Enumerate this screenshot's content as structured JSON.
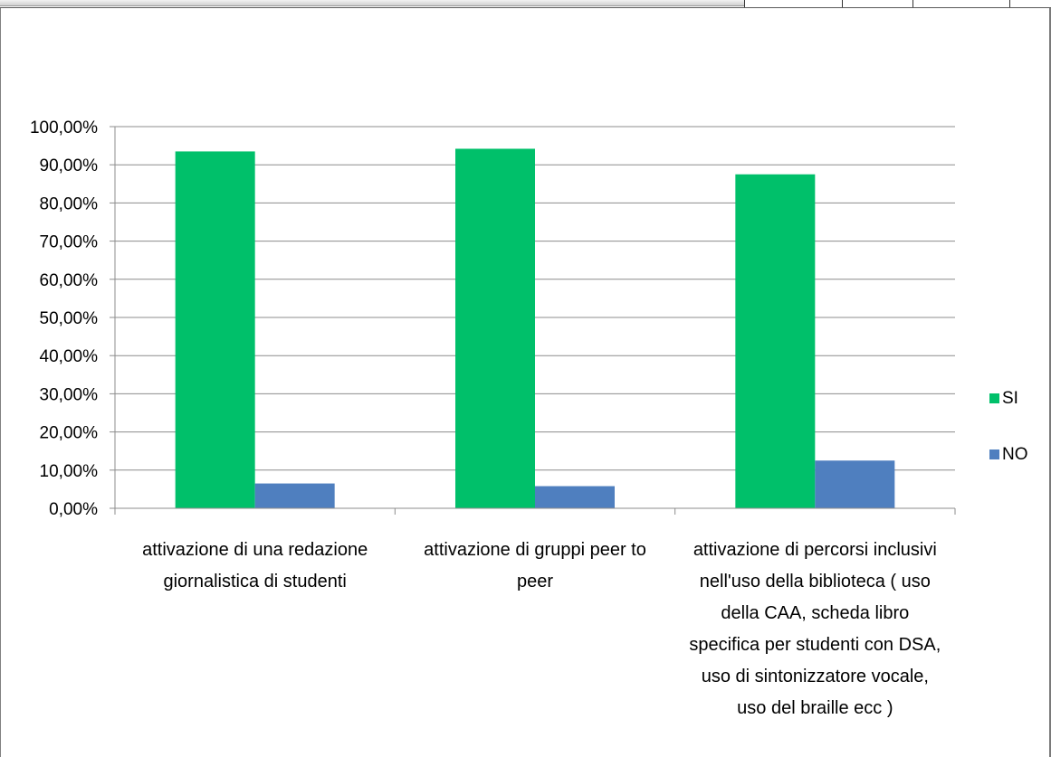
{
  "chart_data": {
    "type": "bar",
    "title": "",
    "xlabel": "",
    "ylabel": "",
    "ylim": [
      0,
      1
    ],
    "grid": true,
    "legend_position": "right",
    "y_ticks": [
      "0,00%",
      "10,00%",
      "20,00%",
      "30,00%",
      "40,00%",
      "50,00%",
      "60,00%",
      "70,00%",
      "80,00%",
      "90,00%",
      "100,00%"
    ],
    "categories": [
      [
        "attivazione di una redazione",
        "giornalistica di studenti"
      ],
      [
        "attivazione di gruppi peer to",
        "peer"
      ],
      [
        "attivazione di percorsi inclusivi",
        "nell'uso della biblioteca ( uso",
        "della CAA, scheda libro",
        "specifica per studenti con DSA,",
        "uso di sintonizzatore vocale,",
        "uso del braille ecc )"
      ]
    ],
    "series": [
      {
        "name": "SI",
        "color": "#00c06a",
        "values": [
          0.935,
          0.942,
          0.875
        ]
      },
      {
        "name": "NO",
        "color": "#4f7fbf",
        "values": [
          0.065,
          0.058,
          0.125
        ]
      }
    ]
  }
}
